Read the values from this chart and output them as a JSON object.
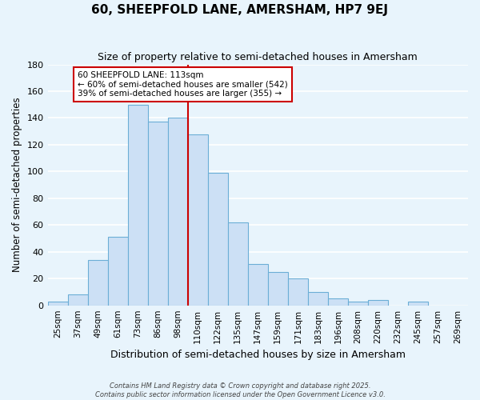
{
  "title": "60, SHEEPFOLD LANE, AMERSHAM, HP7 9EJ",
  "subtitle": "Size of property relative to semi-detached houses in Amersham",
  "xlabel": "Distribution of semi-detached houses by size in Amersham",
  "ylabel": "Number of semi-detached properties",
  "bar_labels": [
    "25sqm",
    "37sqm",
    "49sqm",
    "61sqm",
    "73sqm",
    "86sqm",
    "98sqm",
    "110sqm",
    "122sqm",
    "135sqm",
    "147sqm",
    "159sqm",
    "171sqm",
    "183sqm",
    "196sqm",
    "208sqm",
    "220sqm",
    "232sqm",
    "245sqm",
    "257sqm",
    "269sqm"
  ],
  "bar_values": [
    3,
    8,
    34,
    51,
    150,
    137,
    140,
    128,
    99,
    62,
    31,
    25,
    20,
    10,
    5,
    3,
    4,
    0,
    3,
    0,
    0
  ],
  "bar_color": "#cce0f5",
  "bar_edge_color": "#6baed6",
  "vline_color": "#cc0000",
  "annotation_title": "60 SHEEPFOLD LANE: 113sqm",
  "annotation_line1": "← 60% of semi-detached houses are smaller (542)",
  "annotation_line2": "39% of semi-detached houses are larger (355) →",
  "annotation_box_color": "white",
  "annotation_box_edge": "#cc0000",
  "ylim": [
    0,
    180
  ],
  "yticks": [
    0,
    20,
    40,
    60,
    80,
    100,
    120,
    140,
    160,
    180
  ],
  "footer_line1": "Contains HM Land Registry data © Crown copyright and database right 2025.",
  "footer_line2": "Contains public sector information licensed under the Open Government Licence v3.0.",
  "bg_color": "#e8f4fc",
  "grid_color": "#ffffff"
}
